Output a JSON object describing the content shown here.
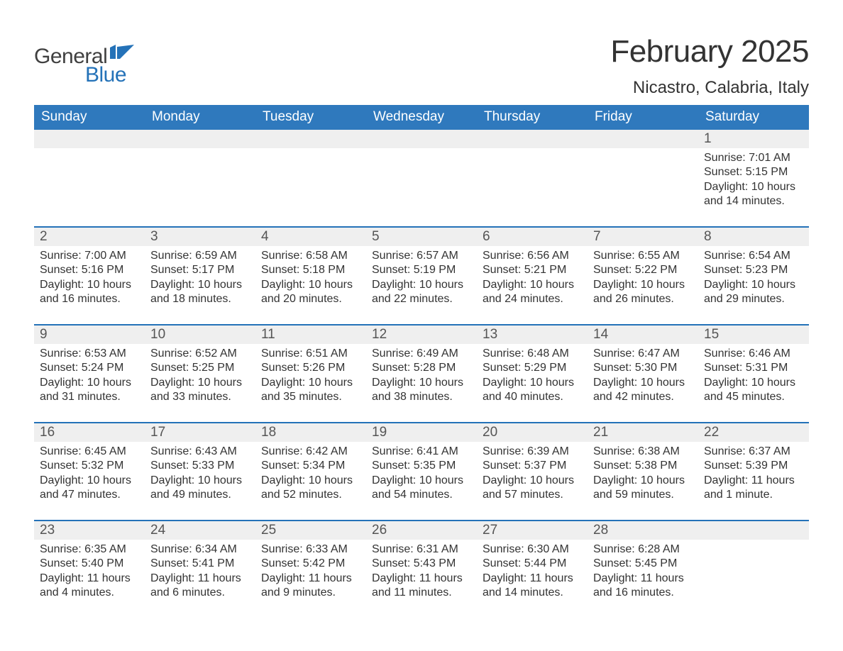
{
  "logo": {
    "text1": "General",
    "text2": "Blue",
    "brand_color": "#2472b8"
  },
  "title": "February 2025",
  "location": "Nicastro, Calabria, Italy",
  "colors": {
    "header_bg": "#2f79bd",
    "row_top_border": "#2472b8",
    "daynum_bg": "#efefef",
    "page_bg": "#ffffff",
    "text": "#333333"
  },
  "days_of_week": [
    "Sunday",
    "Monday",
    "Tuesday",
    "Wednesday",
    "Thursday",
    "Friday",
    "Saturday"
  ],
  "weeks": [
    [
      {
        "n": "",
        "sunrise": "",
        "sunset": "",
        "daylight": ""
      },
      {
        "n": "",
        "sunrise": "",
        "sunset": "",
        "daylight": ""
      },
      {
        "n": "",
        "sunrise": "",
        "sunset": "",
        "daylight": ""
      },
      {
        "n": "",
        "sunrise": "",
        "sunset": "",
        "daylight": ""
      },
      {
        "n": "",
        "sunrise": "",
        "sunset": "",
        "daylight": ""
      },
      {
        "n": "",
        "sunrise": "",
        "sunset": "",
        "daylight": ""
      },
      {
        "n": "1",
        "sunrise": "Sunrise: 7:01 AM",
        "sunset": "Sunset: 5:15 PM",
        "daylight": "Daylight: 10 hours and 14 minutes."
      }
    ],
    [
      {
        "n": "2",
        "sunrise": "Sunrise: 7:00 AM",
        "sunset": "Sunset: 5:16 PM",
        "daylight": "Daylight: 10 hours and 16 minutes."
      },
      {
        "n": "3",
        "sunrise": "Sunrise: 6:59 AM",
        "sunset": "Sunset: 5:17 PM",
        "daylight": "Daylight: 10 hours and 18 minutes."
      },
      {
        "n": "4",
        "sunrise": "Sunrise: 6:58 AM",
        "sunset": "Sunset: 5:18 PM",
        "daylight": "Daylight: 10 hours and 20 minutes."
      },
      {
        "n": "5",
        "sunrise": "Sunrise: 6:57 AM",
        "sunset": "Sunset: 5:19 PM",
        "daylight": "Daylight: 10 hours and 22 minutes."
      },
      {
        "n": "6",
        "sunrise": "Sunrise: 6:56 AM",
        "sunset": "Sunset: 5:21 PM",
        "daylight": "Daylight: 10 hours and 24 minutes."
      },
      {
        "n": "7",
        "sunrise": "Sunrise: 6:55 AM",
        "sunset": "Sunset: 5:22 PM",
        "daylight": "Daylight: 10 hours and 26 minutes."
      },
      {
        "n": "8",
        "sunrise": "Sunrise: 6:54 AM",
        "sunset": "Sunset: 5:23 PM",
        "daylight": "Daylight: 10 hours and 29 minutes."
      }
    ],
    [
      {
        "n": "9",
        "sunrise": "Sunrise: 6:53 AM",
        "sunset": "Sunset: 5:24 PM",
        "daylight": "Daylight: 10 hours and 31 minutes."
      },
      {
        "n": "10",
        "sunrise": "Sunrise: 6:52 AM",
        "sunset": "Sunset: 5:25 PM",
        "daylight": "Daylight: 10 hours and 33 minutes."
      },
      {
        "n": "11",
        "sunrise": "Sunrise: 6:51 AM",
        "sunset": "Sunset: 5:26 PM",
        "daylight": "Daylight: 10 hours and 35 minutes."
      },
      {
        "n": "12",
        "sunrise": "Sunrise: 6:49 AM",
        "sunset": "Sunset: 5:28 PM",
        "daylight": "Daylight: 10 hours and 38 minutes."
      },
      {
        "n": "13",
        "sunrise": "Sunrise: 6:48 AM",
        "sunset": "Sunset: 5:29 PM",
        "daylight": "Daylight: 10 hours and 40 minutes."
      },
      {
        "n": "14",
        "sunrise": "Sunrise: 6:47 AM",
        "sunset": "Sunset: 5:30 PM",
        "daylight": "Daylight: 10 hours and 42 minutes."
      },
      {
        "n": "15",
        "sunrise": "Sunrise: 6:46 AM",
        "sunset": "Sunset: 5:31 PM",
        "daylight": "Daylight: 10 hours and 45 minutes."
      }
    ],
    [
      {
        "n": "16",
        "sunrise": "Sunrise: 6:45 AM",
        "sunset": "Sunset: 5:32 PM",
        "daylight": "Daylight: 10 hours and 47 minutes."
      },
      {
        "n": "17",
        "sunrise": "Sunrise: 6:43 AM",
        "sunset": "Sunset: 5:33 PM",
        "daylight": "Daylight: 10 hours and 49 minutes."
      },
      {
        "n": "18",
        "sunrise": "Sunrise: 6:42 AM",
        "sunset": "Sunset: 5:34 PM",
        "daylight": "Daylight: 10 hours and 52 minutes."
      },
      {
        "n": "19",
        "sunrise": "Sunrise: 6:41 AM",
        "sunset": "Sunset: 5:35 PM",
        "daylight": "Daylight: 10 hours and 54 minutes."
      },
      {
        "n": "20",
        "sunrise": "Sunrise: 6:39 AM",
        "sunset": "Sunset: 5:37 PM",
        "daylight": "Daylight: 10 hours and 57 minutes."
      },
      {
        "n": "21",
        "sunrise": "Sunrise: 6:38 AM",
        "sunset": "Sunset: 5:38 PM",
        "daylight": "Daylight: 10 hours and 59 minutes."
      },
      {
        "n": "22",
        "sunrise": "Sunrise: 6:37 AM",
        "sunset": "Sunset: 5:39 PM",
        "daylight": "Daylight: 11 hours and 1 minute."
      }
    ],
    [
      {
        "n": "23",
        "sunrise": "Sunrise: 6:35 AM",
        "sunset": "Sunset: 5:40 PM",
        "daylight": "Daylight: 11 hours and 4 minutes."
      },
      {
        "n": "24",
        "sunrise": "Sunrise: 6:34 AM",
        "sunset": "Sunset: 5:41 PM",
        "daylight": "Daylight: 11 hours and 6 minutes."
      },
      {
        "n": "25",
        "sunrise": "Sunrise: 6:33 AM",
        "sunset": "Sunset: 5:42 PM",
        "daylight": "Daylight: 11 hours and 9 minutes."
      },
      {
        "n": "26",
        "sunrise": "Sunrise: 6:31 AM",
        "sunset": "Sunset: 5:43 PM",
        "daylight": "Daylight: 11 hours and 11 minutes."
      },
      {
        "n": "27",
        "sunrise": "Sunrise: 6:30 AM",
        "sunset": "Sunset: 5:44 PM",
        "daylight": "Daylight: 11 hours and 14 minutes."
      },
      {
        "n": "28",
        "sunrise": "Sunrise: 6:28 AM",
        "sunset": "Sunset: 5:45 PM",
        "daylight": "Daylight: 11 hours and 16 minutes."
      },
      {
        "n": "",
        "sunrise": "",
        "sunset": "",
        "daylight": ""
      }
    ]
  ]
}
